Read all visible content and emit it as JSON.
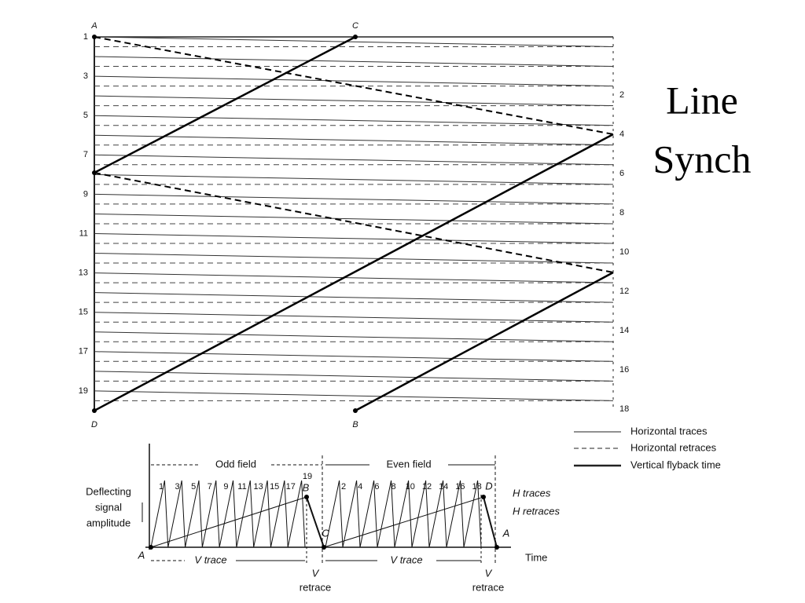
{
  "title": {
    "line1": "Line",
    "line2": "Synch"
  },
  "raster": {
    "corners": [
      "A",
      "C",
      "D",
      "B"
    ],
    "odd_lines": [
      1,
      3,
      5,
      7,
      9,
      11,
      13,
      15,
      17,
      19
    ],
    "even_lines": [
      2,
      4,
      6,
      8,
      10,
      12,
      14,
      16,
      18
    ]
  },
  "legend": [
    "Horizontal traces",
    "Horizontal retraces",
    "Vertical flyback time"
  ],
  "waveform": {
    "odd_field": "Odd field",
    "even_field": "Even field",
    "odd_numbers": [
      1,
      3,
      5,
      7,
      9,
      11,
      13,
      15,
      17
    ],
    "even_numbers": [
      2,
      4,
      6,
      8,
      10,
      12,
      14,
      16,
      18
    ],
    "line_19": 19,
    "points": [
      "A",
      "B",
      "C",
      "D",
      "A"
    ],
    "y_label": [
      "Deflecting",
      "signal",
      "amplitude"
    ],
    "h_traces": "H traces",
    "h_retraces": "H retraces",
    "v_trace": [
      "V trace",
      "V trace"
    ],
    "v_retrace": [
      {
        "v": "V",
        "label": "retrace"
      },
      {
        "v": "V",
        "label": "retrace"
      }
    ],
    "time": "Time"
  }
}
